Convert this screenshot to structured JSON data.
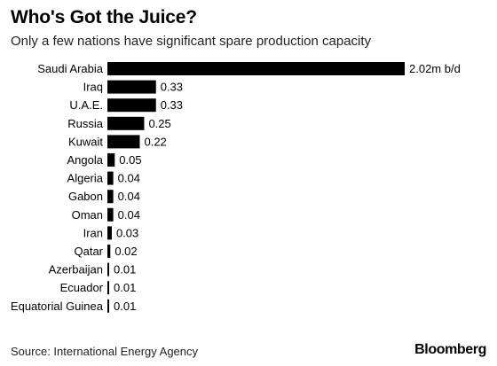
{
  "header": {
    "title": "Who's Got the Juice?",
    "subtitle": "Only a few nations have significant spare production capacity"
  },
  "footer": {
    "source": "Source: International Energy Agency",
    "brand": "Bloomberg"
  },
  "colors": {
    "bar": "#000000",
    "background": "#ffffff"
  },
  "chart_data": {
    "type": "bar",
    "orientation": "horizontal",
    "title": "Who's Got the Juice?",
    "subtitle": "Only a few nations have significant spare production capacity",
    "unit_suffix": "m b/d",
    "categories": [
      "Saudi Arabia",
      "Iraq",
      "U.A.E.",
      "Russia",
      "Kuwait",
      "Angola",
      "Algeria",
      "Gabon",
      "Oman",
      "Iran",
      "Qatar",
      "Azerbaijan",
      "Ecuador",
      "Equatorial Guinea"
    ],
    "values": [
      2.02,
      0.33,
      0.33,
      0.25,
      0.22,
      0.05,
      0.04,
      0.04,
      0.04,
      0.03,
      0.02,
      0.01,
      0.01,
      0.01
    ],
    "value_labels": [
      "2.02m b/d",
      "0.33",
      "0.33",
      "0.25",
      "0.22",
      "0.05",
      "0.04",
      "0.04",
      "0.04",
      "0.03",
      "0.02",
      "0.01",
      "0.01",
      "0.01"
    ],
    "xlim": [
      0,
      2.02
    ],
    "grid": false,
    "legend": "none"
  }
}
